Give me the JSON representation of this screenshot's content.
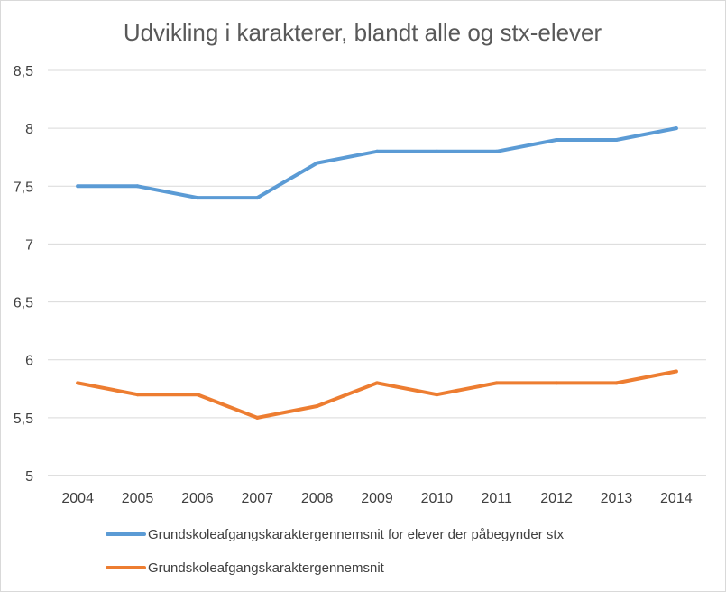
{
  "chart_data": {
    "type": "line",
    "title": "Udvikling i karakterer, blandt alle og stx-elever",
    "xlabel": "",
    "ylabel": "",
    "categories": [
      "2004",
      "2005",
      "2006",
      "2007",
      "2008",
      "2009",
      "2010",
      "2011",
      "2012",
      "2013",
      "2014"
    ],
    "ylim": [
      5,
      8.5
    ],
    "y_ticks": [
      "5",
      "5,5",
      "6",
      "6,5",
      "7",
      "7,5",
      "8",
      "8,5"
    ],
    "grid": true,
    "legend_position": "bottom",
    "series": [
      {
        "name": "Grundskoleafgangskaraktergennemsnit for elever der påbegynder stx",
        "color": "#5b9bd5",
        "values": [
          7.5,
          7.5,
          7.4,
          7.4,
          7.7,
          7.8,
          7.8,
          7.8,
          7.9,
          7.9,
          8.0
        ]
      },
      {
        "name": "Grundskoleafgangskaraktergennemsnit",
        "color": "#ed7d31",
        "values": [
          5.8,
          5.7,
          5.7,
          5.5,
          5.6,
          5.8,
          5.7,
          5.8,
          5.8,
          5.8,
          5.9
        ]
      }
    ]
  }
}
